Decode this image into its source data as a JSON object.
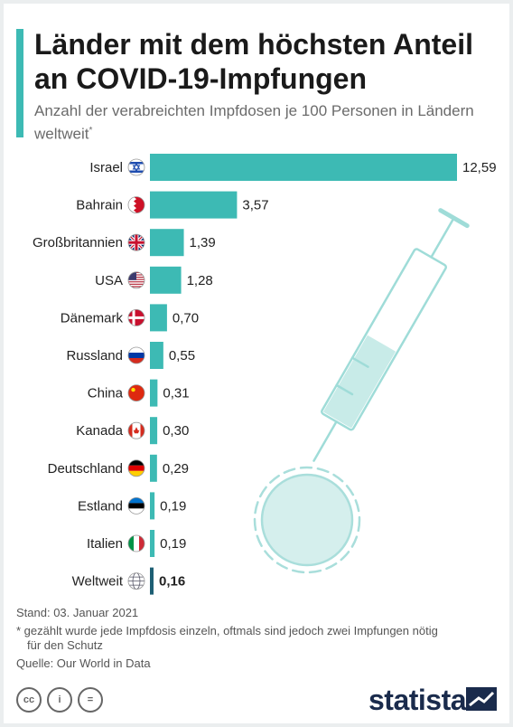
{
  "header": {
    "title": "Länder mit dem höchsten Anteil an COVID-19-Impfungen",
    "subtitle": "Anzahl der verabreichten Impfdosen je 100 Personen in Ländern weltweit",
    "subtitle_mark": "*"
  },
  "chart_data": {
    "type": "bar",
    "orientation": "horizontal",
    "categories": [
      "Israel",
      "Bahrain",
      "Großbritannien",
      "USA",
      "Dänemark",
      "Russland",
      "China",
      "Kanada",
      "Deutschland",
      "Estland",
      "Italien",
      "Weltweit"
    ],
    "values": [
      12.59,
      3.57,
      1.39,
      1.28,
      0.7,
      0.55,
      0.31,
      0.3,
      0.29,
      0.19,
      0.19,
      0.16
    ],
    "value_labels": [
      "12,59",
      "3,57",
      "1,39",
      "1,28",
      "0,70",
      "0,55",
      "0,31",
      "0,30",
      "0,29",
      "0,19",
      "0,19",
      "0,16"
    ],
    "flags": [
      "israel-flag",
      "bahrain-flag",
      "uk-flag",
      "usa-flag",
      "denmark-flag",
      "russia-flag",
      "china-flag",
      "canada-flag",
      "germany-flag",
      "estonia-flag",
      "italy-flag",
      "globe-icon"
    ],
    "highlight_last": true,
    "bar_color": "#3dbab4",
    "highlight_color": "#1e5f74"
  },
  "footer": {
    "date": "Stand: 03. Januar 2021",
    "note_line1": "* gezählt wurde jede Impfdosis einzeln, oftmals sind jedoch zwei Impfungen nötig",
    "note_line2": "für den Schutz",
    "source": "Quelle: Our World in Data",
    "brand": "statista",
    "license_icons": [
      "cc-icon",
      "by-icon",
      "nd-icon"
    ],
    "license_glyphs": [
      "cc",
      "i",
      "="
    ]
  }
}
